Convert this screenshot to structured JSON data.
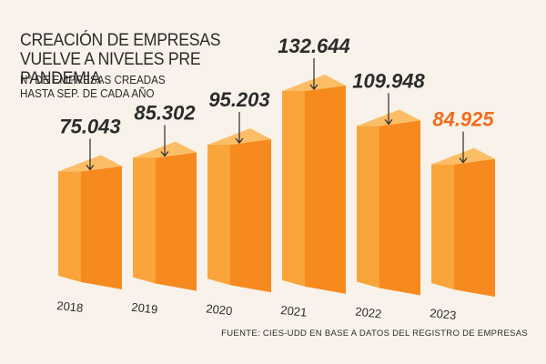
{
  "title": "CREACIÓN DE EMPRESAS VUELVE A NIVELES PRE PANDEMIA",
  "subtitle": "N° DE EMPRESAS CREADAS HASTA SEP. DE CADA AÑO",
  "source": "FUENTE: CIES-UDD EN BASE A DATOS DEL REGISTRO DE EMPRESAS",
  "colors": {
    "bar_front": "#f68a1f",
    "bar_side": "#f9a53b",
    "bar_top": "#fbbe66",
    "label_default": "#2b2b2b",
    "label_highlight": "#f26b1d"
  },
  "chart_data": {
    "type": "bar",
    "title": "CREACIÓN DE EMPRESAS VUELVE A NIVELES PRE PANDEMIA",
    "ylabel": "N° DE EMPRESAS CREADAS HASTA SEP. DE CADA AÑO",
    "xlabel": "",
    "categories": [
      "2018",
      "2019",
      "2020",
      "2021",
      "2022",
      "2023"
    ],
    "values": [
      75043,
      85302,
      95203,
      132644,
      109948,
      84925
    ],
    "value_labels": [
      "75.043",
      "85.302",
      "95.203",
      "132.644",
      "109.948",
      "84.925"
    ],
    "highlight": "2023",
    "ylim": [
      0,
      150000
    ]
  }
}
